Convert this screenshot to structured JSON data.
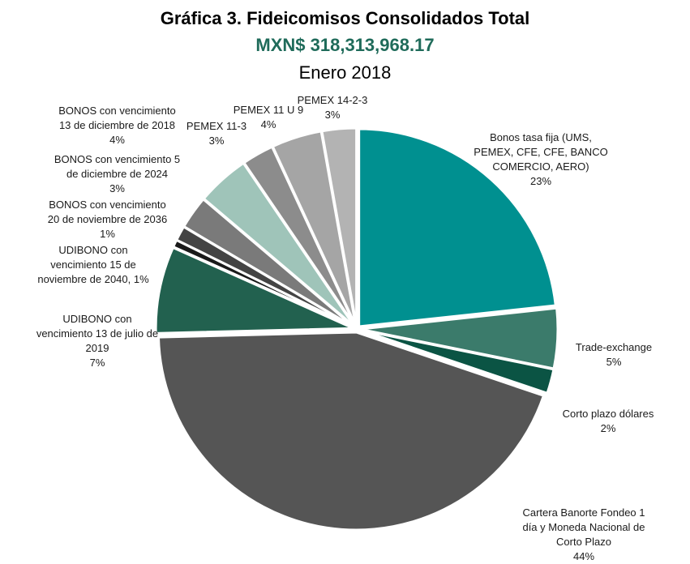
{
  "chart_data": {
    "type": "pie",
    "title": "Gráfica 3. Fideicomisos Consolidados Total",
    "subtitle": "MXN$ 318,313,968.17",
    "period": "Enero 2018",
    "start_angle_deg": 0,
    "direction": "clockwise",
    "slices": [
      {
        "label_lines": [
          "Bonos tasa fija (UMS,",
          "PEMEX, CFE, CFE, BANCO",
          "COMERCIO, AERO)",
          "23%"
        ],
        "value": 23.3,
        "color": "#009090"
      },
      {
        "label_lines": [
          "Trade-exchange",
          "5%"
        ],
        "value": 4.9,
        "color": "#3b7b6b"
      },
      {
        "label_lines": [
          "Corto plazo dólares",
          "2%"
        ],
        "value": 2.0,
        "color": "#0b5444"
      },
      {
        "label_lines": [
          "Cartera Banorte Fondeo 1",
          "día y Moneda Nacional de",
          "Corto Plazo",
          "44%"
        ],
        "value": 44.4,
        "color": "#555555"
      },
      {
        "label_lines": [
          "UDIBONO con",
          "vencimiento 13 de julio de",
          "2019",
          "7%"
        ],
        "value": 7.1,
        "color": "#22614f"
      },
      {
        "label_lines": [
          "UDIBONO con",
          "vencimiento 15 de",
          "noviembre de 2040, 1%"
        ],
        "value": 0.6,
        "color": "#1a1a1a"
      },
      {
        "label_lines": [
          "BONOS con vencimiento",
          "20 de noviembre de 2036",
          "1%"
        ],
        "value": 1.2,
        "color": "#444444"
      },
      {
        "label_lines": [
          "BONOS con vencimiento 5",
          "de diciembre de 2024",
          "3%"
        ],
        "value": 2.7,
        "color": "#7a7a7a"
      },
      {
        "label_lines": [
          "BONOS con vencimiento",
          "13 de diciembre de 2018",
          "4%"
        ],
        "value": 4.3,
        "color": "#9fc4b9"
      },
      {
        "label_lines": [
          "PEMEX 11-3",
          "3%"
        ],
        "value": 2.6,
        "color": "#8c8c8c"
      },
      {
        "label_lines": [
          "PEMEX 11 U 9",
          "4%"
        ],
        "value": 4.1,
        "color": "#a5a5a5"
      },
      {
        "label_lines": [
          "PEMEX 14-2-3",
          "3%"
        ],
        "value": 2.8,
        "color": "#b3b3b3"
      }
    ]
  }
}
